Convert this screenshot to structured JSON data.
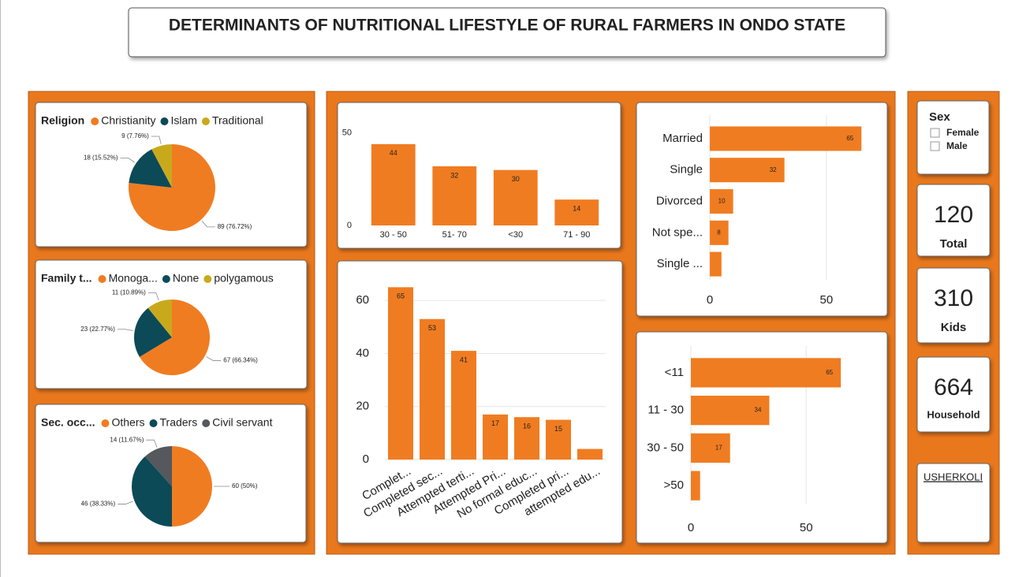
{
  "header": {
    "title": "DETERMINANTS OF NUTRITIONAL LIFESTYLE OF RURAL FARMERS IN ONDO STATE"
  },
  "chart_data": [
    {
      "type": "pie",
      "title": "Religion",
      "categories": [
        "Christianity",
        "Islam",
        "Traditional"
      ],
      "values": [
        89,
        18,
        9
      ],
      "value_labels": [
        "89 (76.72%)",
        "18 (15.52%)",
        "9 (7.76%)"
      ],
      "colors": [
        "#f07c21",
        "#0c4a58",
        "#c9a91c"
      ]
    },
    {
      "type": "pie",
      "title": "Family t...",
      "categories": [
        "Monoga...",
        "None",
        "polygamous"
      ],
      "values": [
        67,
        23,
        11
      ],
      "value_labels": [
        "67 (66.34%)",
        "23 (22.77%)",
        "11 (10.89%)"
      ],
      "colors": [
        "#f07c21",
        "#0c4a58",
        "#c9a91c"
      ]
    },
    {
      "type": "pie",
      "title": "Sec. occ...",
      "categories": [
        "Others",
        "Traders",
        "Civil servant"
      ],
      "values": [
        60,
        46,
        14
      ],
      "value_labels": [
        "60 (50%)",
        "46 (38.33%)",
        "14 (11.67%)"
      ],
      "colors": [
        "#f07c21",
        "#0c4a58",
        "#55585c"
      ]
    },
    {
      "type": "bar",
      "orientation": "vertical",
      "categories": [
        "30 - 50",
        "51- 70",
        "<30",
        "71 - 90"
      ],
      "values": [
        44,
        32,
        30,
        14
      ],
      "color": "#f07c21",
      "ylim": [
        0,
        58
      ],
      "yticks": [
        0,
        50
      ],
      "grid": false
    },
    {
      "type": "bar",
      "orientation": "vertical",
      "categories": [
        "Complet...",
        "Completed sec...",
        "Attempted terti...",
        "Attempted Pri...",
        "No formal educ...",
        "Completed pri...",
        "attempted edu..."
      ],
      "values": [
        65,
        53,
        41,
        17,
        16,
        15,
        4
      ],
      "color": "#f07c21",
      "ylim": [
        0,
        66
      ],
      "yticks": [
        0,
        20,
        40,
        60
      ],
      "grid": true
    },
    {
      "type": "bar",
      "orientation": "horizontal",
      "categories": [
        "Married",
        "Single",
        "Divorced",
        "Not spe...",
        "Single ..."
      ],
      "values": [
        65,
        32,
        10,
        8,
        5
      ],
      "color": "#f07c21",
      "xlim": [
        0,
        71
      ],
      "xticks": [
        0,
        50
      ],
      "grid": true
    },
    {
      "type": "bar",
      "orientation": "horizontal",
      "categories": [
        "<11",
        "11 - 30",
        "30 - 50",
        ">50"
      ],
      "values": [
        65,
        34,
        17,
        4
      ],
      "color": "#f07c21",
      "xlim": [
        0,
        80
      ],
      "xticks": [
        0,
        50
      ],
      "grid": true
    }
  ],
  "slicer": {
    "title": "Sex",
    "options": [
      "Female",
      "Male"
    ]
  },
  "cards": [
    {
      "value": 120,
      "label": "Total"
    },
    {
      "value": 310,
      "label": "Kids"
    },
    {
      "value": 664,
      "label": "Household"
    }
  ],
  "link": {
    "text": "USHERKOLI"
  }
}
